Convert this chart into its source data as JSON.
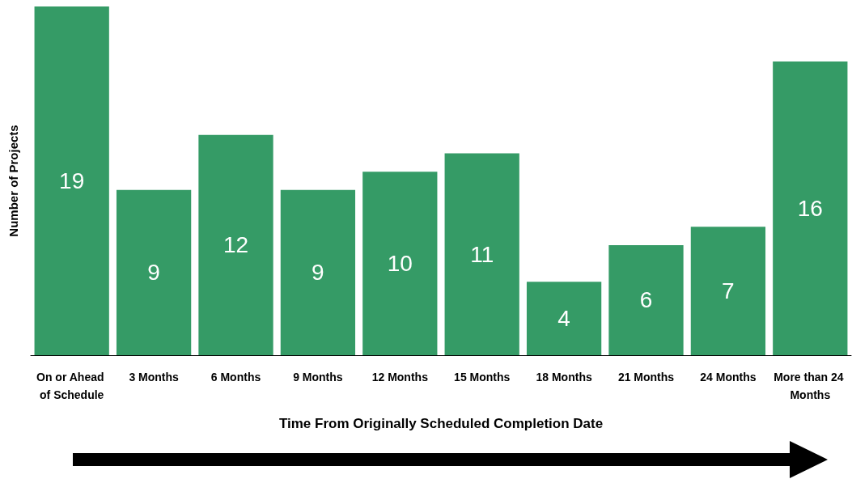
{
  "chart_data": {
    "type": "bar",
    "xlabel": "Time From Originally Scheduled Completion Date",
    "ylabel": "Number of Projects",
    "categories": [
      "On or Ahead of Schedule",
      "3 Months",
      "6 Months",
      "9 Months",
      "12 Months",
      "15 Months",
      "18 Months",
      "21 Months",
      "24 Months",
      "More than 24 Months"
    ],
    "values": [
      19,
      9,
      12,
      9,
      10,
      11,
      4,
      6,
      7,
      16
    ],
    "color": "#359b66",
    "data_labels": true
  }
}
